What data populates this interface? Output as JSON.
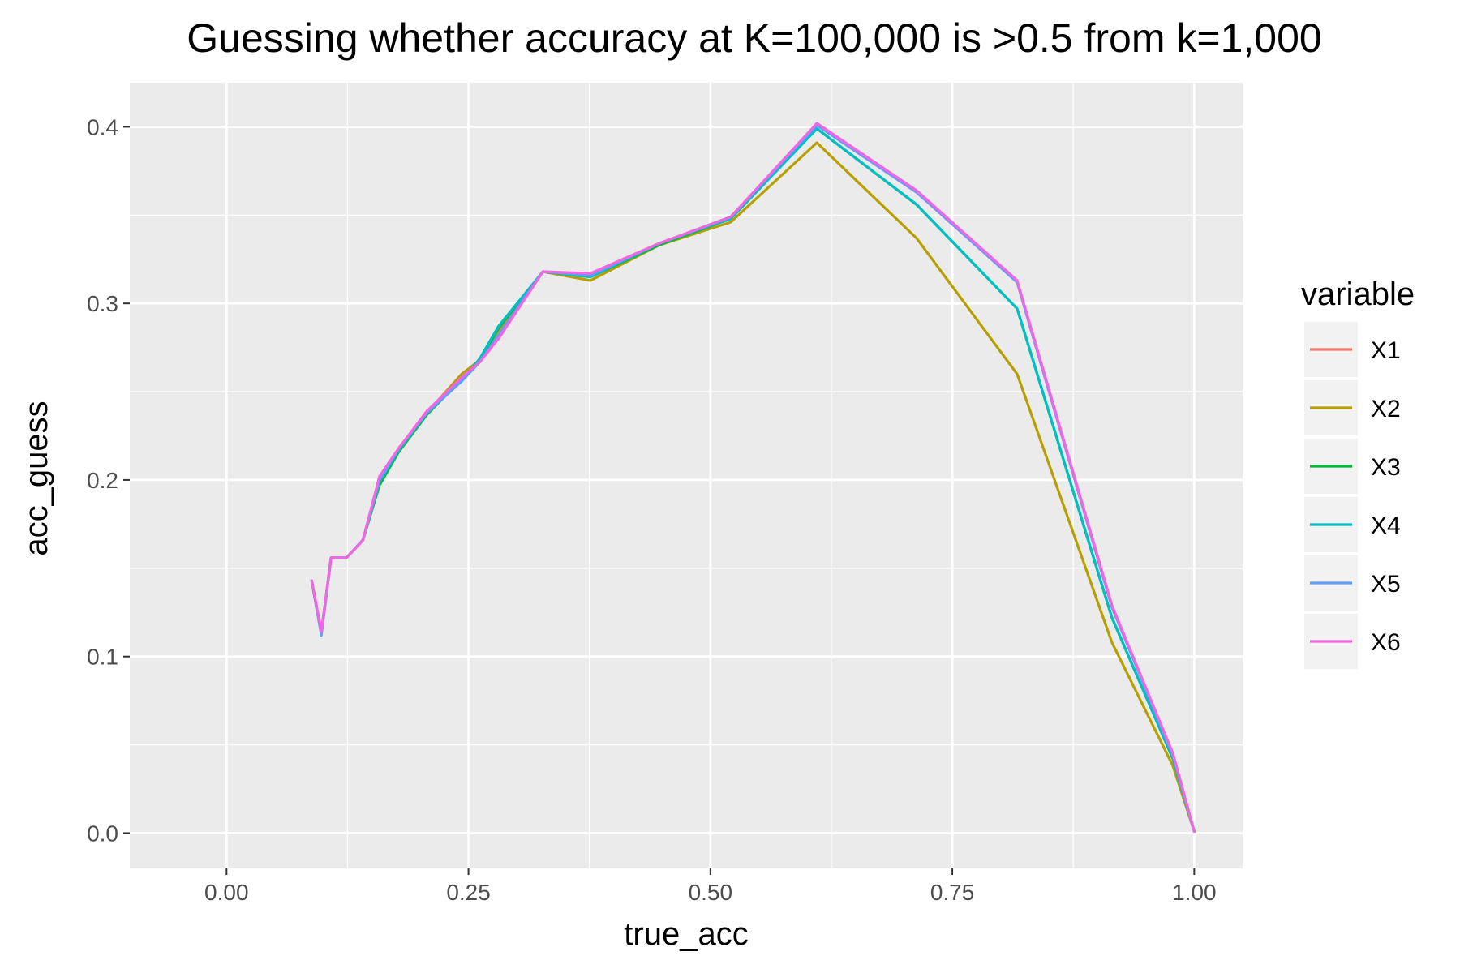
{
  "chart_data": {
    "type": "line",
    "title": "Guessing whether accuracy at K=100,000 is >0.5 from k=1,000",
    "xlabel": "true_acc",
    "ylabel": "acc_guess",
    "xlim": [
      -0.1,
      1.05
    ],
    "ylim": [
      -0.02,
      0.425
    ],
    "x_ticks": [
      0.0,
      0.25,
      0.5,
      0.75,
      1.0
    ],
    "x_tick_labels": [
      "0.00",
      "0.25",
      "0.50",
      "0.75",
      "1.00"
    ],
    "y_ticks": [
      0.0,
      0.1,
      0.2,
      0.3,
      0.4
    ],
    "y_tick_labels": [
      "0.0",
      "0.1",
      "0.2",
      "0.3",
      "0.4"
    ],
    "grid": true,
    "legend": {
      "title": "variable",
      "placement": "right"
    },
    "series": [
      {
        "name": "X1",
        "color": "#F8766D",
        "points": [
          [
            0.088,
            0.143
          ],
          [
            0.098,
            0.113
          ],
          [
            0.108,
            0.156
          ],
          [
            0.124,
            0.156
          ],
          [
            0.141,
            0.166
          ],
          [
            0.158,
            0.2
          ],
          [
            0.178,
            0.218
          ],
          [
            0.207,
            0.238
          ],
          [
            0.243,
            0.257
          ],
          [
            0.262,
            0.267
          ],
          [
            0.281,
            0.283
          ],
          [
            0.327,
            0.318
          ],
          [
            0.376,
            0.316
          ],
          [
            0.447,
            0.334
          ],
          [
            0.521,
            0.349
          ],
          [
            0.61,
            0.401
          ],
          [
            0.713,
            0.363
          ],
          [
            0.817,
            0.312
          ],
          [
            0.915,
            0.128
          ],
          [
            0.978,
            0.045
          ],
          [
            1.0,
            0.001
          ]
        ]
      },
      {
        "name": "X2",
        "color": "#B79F00",
        "points": [
          [
            0.088,
            0.143
          ],
          [
            0.098,
            0.113
          ],
          [
            0.108,
            0.156
          ],
          [
            0.124,
            0.156
          ],
          [
            0.141,
            0.166
          ],
          [
            0.158,
            0.2
          ],
          [
            0.178,
            0.218
          ],
          [
            0.207,
            0.238
          ],
          [
            0.243,
            0.26
          ],
          [
            0.262,
            0.268
          ],
          [
            0.281,
            0.285
          ],
          [
            0.327,
            0.318
          ],
          [
            0.376,
            0.313
          ],
          [
            0.447,
            0.333
          ],
          [
            0.521,
            0.346
          ],
          [
            0.61,
            0.391
          ],
          [
            0.713,
            0.337
          ],
          [
            0.817,
            0.26
          ],
          [
            0.915,
            0.108
          ],
          [
            0.978,
            0.038
          ],
          [
            1.0,
            0.001
          ]
        ]
      },
      {
        "name": "X3",
        "color": "#00BA38",
        "points": [
          [
            0.088,
            0.143
          ],
          [
            0.098,
            0.114
          ],
          [
            0.108,
            0.156
          ],
          [
            0.124,
            0.156
          ],
          [
            0.141,
            0.166
          ],
          [
            0.158,
            0.197
          ],
          [
            0.178,
            0.216
          ],
          [
            0.207,
            0.237
          ],
          [
            0.243,
            0.257
          ],
          [
            0.262,
            0.268
          ],
          [
            0.281,
            0.286
          ],
          [
            0.327,
            0.318
          ],
          [
            0.376,
            0.315
          ],
          [
            0.447,
            0.333
          ],
          [
            0.521,
            0.348
          ],
          [
            0.61,
            0.399
          ],
          [
            0.713,
            0.356
          ],
          [
            0.817,
            0.297
          ],
          [
            0.915,
            0.122
          ],
          [
            0.978,
            0.042
          ],
          [
            1.0,
            0.001
          ]
        ]
      },
      {
        "name": "X4",
        "color": "#00BFC4",
        "points": [
          [
            0.088,
            0.143
          ],
          [
            0.098,
            0.113
          ],
          [
            0.108,
            0.156
          ],
          [
            0.124,
            0.156
          ],
          [
            0.141,
            0.166
          ],
          [
            0.158,
            0.199
          ],
          [
            0.178,
            0.217
          ],
          [
            0.207,
            0.238
          ],
          [
            0.243,
            0.256
          ],
          [
            0.262,
            0.269
          ],
          [
            0.281,
            0.287
          ],
          [
            0.327,
            0.318
          ],
          [
            0.376,
            0.315
          ],
          [
            0.447,
            0.334
          ],
          [
            0.521,
            0.348
          ],
          [
            0.61,
            0.399
          ],
          [
            0.713,
            0.356
          ],
          [
            0.817,
            0.297
          ],
          [
            0.915,
            0.122
          ],
          [
            0.978,
            0.042
          ],
          [
            1.0,
            0.001
          ]
        ]
      },
      {
        "name": "X5",
        "color": "#619CFF",
        "points": [
          [
            0.088,
            0.143
          ],
          [
            0.098,
            0.112
          ],
          [
            0.108,
            0.156
          ],
          [
            0.124,
            0.156
          ],
          [
            0.141,
            0.166
          ],
          [
            0.158,
            0.2
          ],
          [
            0.178,
            0.218
          ],
          [
            0.207,
            0.238
          ],
          [
            0.243,
            0.256
          ],
          [
            0.262,
            0.267
          ],
          [
            0.281,
            0.282
          ],
          [
            0.327,
            0.318
          ],
          [
            0.376,
            0.316
          ],
          [
            0.447,
            0.334
          ],
          [
            0.521,
            0.349
          ],
          [
            0.61,
            0.401
          ],
          [
            0.713,
            0.363
          ],
          [
            0.817,
            0.312
          ],
          [
            0.915,
            0.128
          ],
          [
            0.978,
            0.044
          ],
          [
            1.0,
            0.001
          ]
        ]
      },
      {
        "name": "X6",
        "color": "#F564E3",
        "points": [
          [
            0.088,
            0.143
          ],
          [
            0.098,
            0.114
          ],
          [
            0.108,
            0.156
          ],
          [
            0.124,
            0.156
          ],
          [
            0.141,
            0.166
          ],
          [
            0.158,
            0.202
          ],
          [
            0.178,
            0.218
          ],
          [
            0.207,
            0.239
          ],
          [
            0.243,
            0.258
          ],
          [
            0.262,
            0.267
          ],
          [
            0.281,
            0.28
          ],
          [
            0.327,
            0.318
          ],
          [
            0.376,
            0.317
          ],
          [
            0.447,
            0.334
          ],
          [
            0.521,
            0.349
          ],
          [
            0.61,
            0.402
          ],
          [
            0.713,
            0.364
          ],
          [
            0.817,
            0.313
          ],
          [
            0.915,
            0.129
          ],
          [
            0.978,
            0.045
          ],
          [
            1.0,
            0.001
          ]
        ]
      }
    ]
  }
}
